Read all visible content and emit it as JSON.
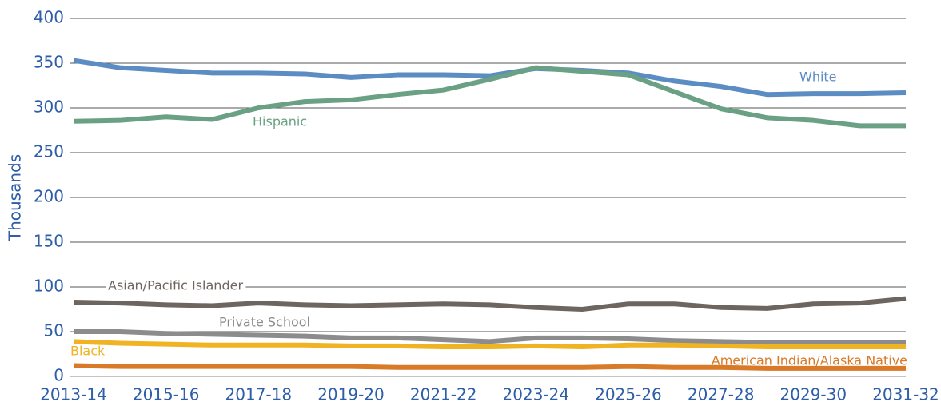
{
  "chart_data": {
    "type": "line",
    "y_label": "Thousands",
    "categories": [
      "2013-14",
      null,
      "2015-16",
      null,
      "2017-18",
      null,
      "2019-20",
      null,
      "2021-22",
      null,
      "2023-24",
      null,
      "2025-26",
      null,
      "2027-28",
      null,
      "2029-30",
      null,
      "2031-32"
    ],
    "ylim": [
      0,
      400
    ],
    "yticks": [
      0,
      50,
      100,
      150,
      200,
      250,
      300,
      350,
      400
    ],
    "grid": true,
    "series": [
      {
        "name": "White",
        "color": "#5b8cc2",
        "values": [
          353,
          345,
          342,
          339,
          339,
          338,
          334,
          337,
          337,
          336,
          344,
          342,
          339,
          330,
          324,
          315,
          316,
          316,
          317
        ]
      },
      {
        "name": "Hispanic",
        "color": "#6aa084",
        "values": [
          285,
          286,
          290,
          287,
          300,
          307,
          309,
          315,
          320,
          332,
          345,
          341,
          337,
          318,
          299,
          289,
          286,
          280,
          280
        ]
      },
      {
        "name": "Asian/Pacific Islander",
        "color": "#6d6560",
        "values": [
          83,
          82,
          80,
          79,
          82,
          80,
          79,
          80,
          81,
          80,
          77,
          75,
          81,
          81,
          77,
          76,
          81,
          82,
          87
        ]
      },
      {
        "name": "Private School",
        "color": "#8c8c8c",
        "values": [
          50,
          50,
          48,
          47,
          46,
          45,
          43,
          43,
          41,
          39,
          43,
          43,
          42,
          40,
          39,
          38,
          38,
          38,
          38
        ]
      },
      {
        "name": "Black",
        "color": "#f0b323",
        "values": [
          39,
          37,
          36,
          35,
          35,
          35,
          34,
          34,
          33,
          33,
          34,
          33,
          35,
          35,
          34,
          33,
          33,
          33,
          33
        ]
      },
      {
        "name": "American Indian/Alaska Native",
        "color": "#d87a28",
        "values": [
          12,
          11,
          11,
          11,
          11,
          11,
          11,
          10,
          10,
          10,
          10,
          10,
          11,
          10,
          10,
          9,
          9,
          9,
          9
        ]
      }
    ]
  }
}
